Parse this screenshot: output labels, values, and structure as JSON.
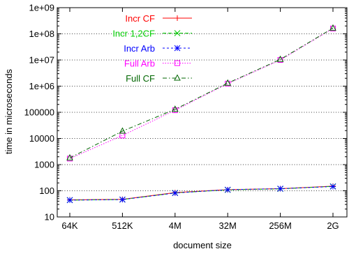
{
  "chart_data": {
    "type": "line",
    "title": "",
    "xlabel": "document size",
    "ylabel": "time in microseconds",
    "yscale": "log",
    "ylim": [
      10,
      1000000000
    ],
    "categories": [
      "64K",
      "512K",
      "4M",
      "32M",
      "256M",
      "2G"
    ],
    "y_tick_labels": [
      "10",
      "100",
      "1000",
      "10000",
      "100000",
      "1e+06",
      "1e+07",
      "1e+08",
      "1e+09"
    ],
    "grid": true,
    "legend_position": "top-left",
    "series": [
      {
        "name": "Incr CF",
        "color": "#ff0000",
        "marker": "plus",
        "dash": "solid",
        "values": [
          45,
          47,
          85,
          110,
          120,
          150
        ]
      },
      {
        "name": "Incr 1,2CF",
        "color": "#00cc00",
        "marker": "cross",
        "dash": "dashed",
        "values": [
          44,
          46,
          83,
          108,
          118,
          148
        ]
      },
      {
        "name": "Incr Arb",
        "color": "#0000ff",
        "marker": "star",
        "dash": "short-dash",
        "values": [
          44,
          46,
          82,
          110,
          120,
          145
        ]
      },
      {
        "name": "Full Arb",
        "color": "#ff00ff",
        "marker": "square",
        "dash": "dotted",
        "values": [
          1700,
          13000,
          120000,
          1250000,
          10000000,
          160000000
        ]
      },
      {
        "name": "Full CF",
        "color": "#006600",
        "marker": "triangle",
        "dash": "dash-dot",
        "values": [
          1800,
          19000,
          130000,
          1300000,
          10500000,
          165000000
        ]
      }
    ]
  }
}
